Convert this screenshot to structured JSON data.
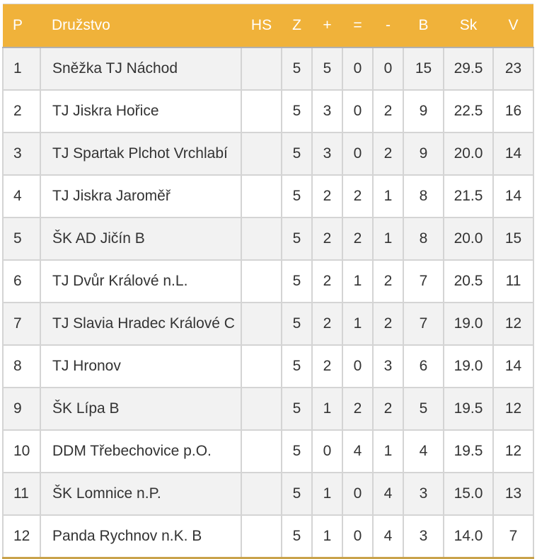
{
  "table": {
    "headers": {
      "pos": "P",
      "team": "Družstvo",
      "hs": "HS",
      "z": "Z",
      "w": "+",
      "d": "=",
      "l": "-",
      "b": "B",
      "sk": "Sk",
      "v": "V"
    },
    "rows": [
      {
        "pos": "1",
        "team": "Sněžka TJ Náchod",
        "hs": "",
        "z": "5",
        "w": "5",
        "d": "0",
        "l": "0",
        "b": "15",
        "sk": "29.5",
        "v": "23"
      },
      {
        "pos": "2",
        "team": "TJ Jiskra Hořice",
        "hs": "",
        "z": "5",
        "w": "3",
        "d": "0",
        "l": "2",
        "b": "9",
        "sk": "22.5",
        "v": "16"
      },
      {
        "pos": "3",
        "team": "TJ Spartak Plchot Vrchlabí",
        "hs": "",
        "z": "5",
        "w": "3",
        "d": "0",
        "l": "2",
        "b": "9",
        "sk": "20.0",
        "v": "14"
      },
      {
        "pos": "4",
        "team": "TJ Jiskra Jaroměř",
        "hs": "",
        "z": "5",
        "w": "2",
        "d": "2",
        "l": "1",
        "b": "8",
        "sk": "21.5",
        "v": "14"
      },
      {
        "pos": "5",
        "team": "ŠK AD Jičín B",
        "hs": "",
        "z": "5",
        "w": "2",
        "d": "2",
        "l": "1",
        "b": "8",
        "sk": "20.0",
        "v": "15"
      },
      {
        "pos": "6",
        "team": "TJ Dvůr Králové n.L.",
        "hs": "",
        "z": "5",
        "w": "2",
        "d": "1",
        "l": "2",
        "b": "7",
        "sk": "20.5",
        "v": "11"
      },
      {
        "pos": "7",
        "team": "TJ Slavia Hradec Králové C",
        "hs": "",
        "z": "5",
        "w": "2",
        "d": "1",
        "l": "2",
        "b": "7",
        "sk": "19.0",
        "v": "12"
      },
      {
        "pos": "8",
        "team": "TJ Hronov",
        "hs": "",
        "z": "5",
        "w": "2",
        "d": "0",
        "l": "3",
        "b": "6",
        "sk": "19.0",
        "v": "14"
      },
      {
        "pos": "9",
        "team": "ŠK Lípa B",
        "hs": "",
        "z": "5",
        "w": "1",
        "d": "2",
        "l": "2",
        "b": "5",
        "sk": "19.5",
        "v": "12"
      },
      {
        "pos": "10",
        "team": "DDM Třebechovice p.O.",
        "hs": "",
        "z": "5",
        "w": "0",
        "d": "4",
        "l": "1",
        "b": "4",
        "sk": "19.5",
        "v": "12"
      },
      {
        "pos": "11",
        "team": "ŠK Lomnice n.P.",
        "hs": "",
        "z": "5",
        "w": "1",
        "d": "0",
        "l": "4",
        "b": "3",
        "sk": "15.0",
        "v": "13"
      },
      {
        "pos": "12",
        "team": "Panda Rychnov n.K. B",
        "hs": "",
        "z": "5",
        "w": "1",
        "d": "0",
        "l": "4",
        "b": "3",
        "sk": "14.0",
        "v": "7"
      }
    ]
  },
  "colors": {
    "header_bg": "#f0b23a",
    "header_text": "#ffffff",
    "row_odd": "#f2f2f2",
    "row_even": "#ffffff",
    "border": "#d4d4d4"
  }
}
